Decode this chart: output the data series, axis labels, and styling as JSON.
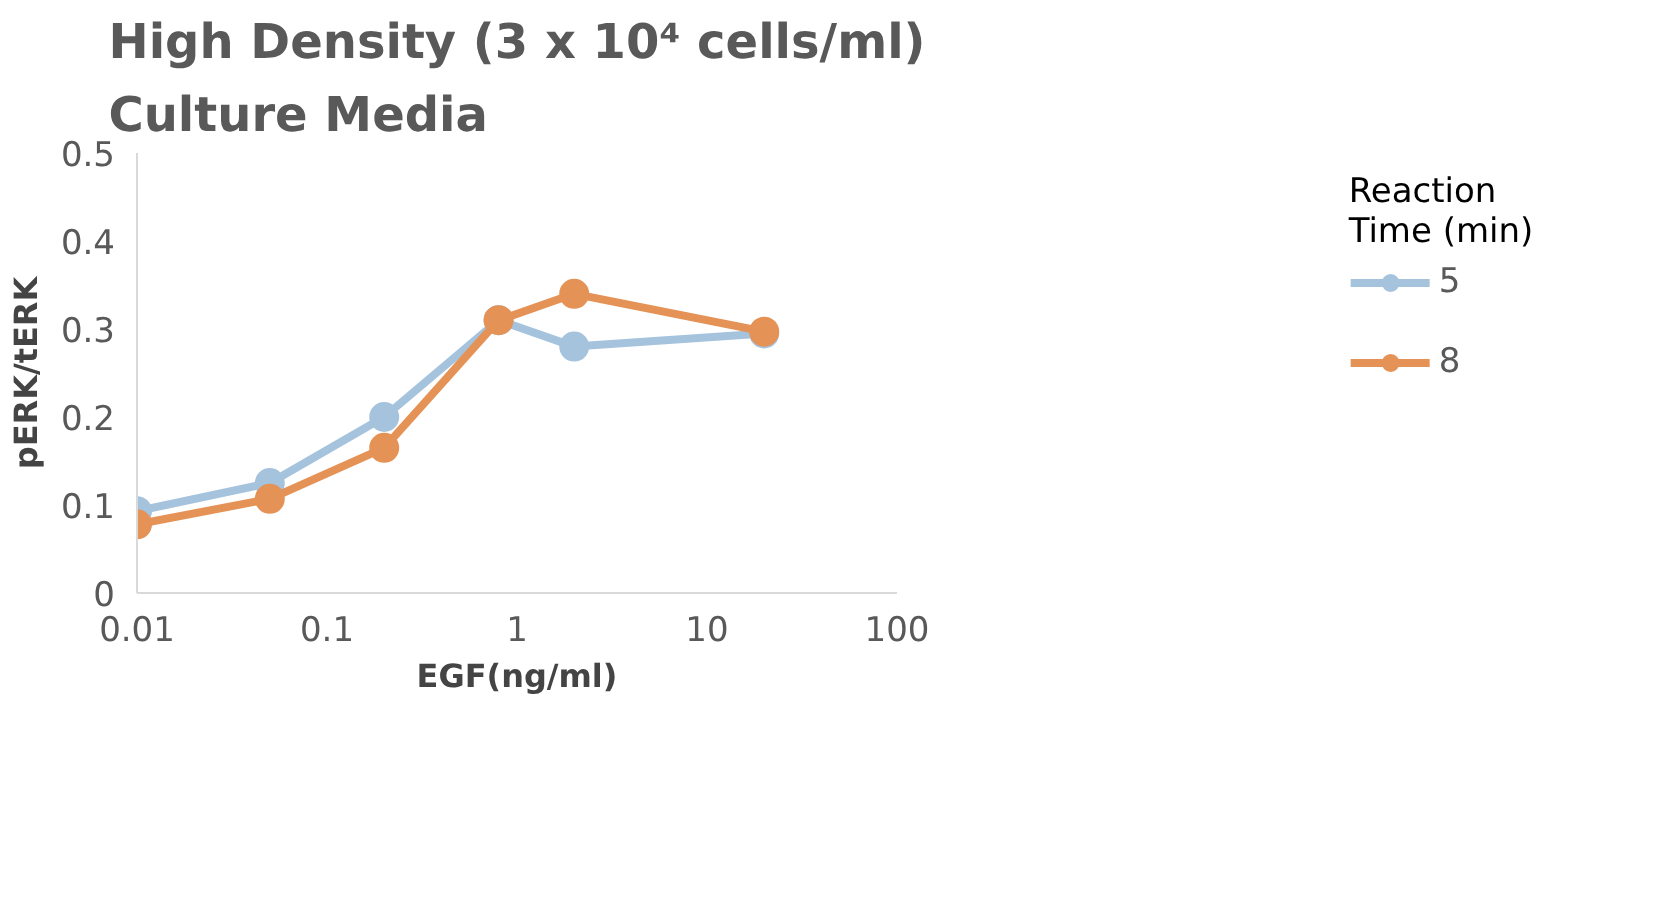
{
  "chart_data": {
    "type": "line",
    "title": "High Density (3 x 10⁴ cells/ml)\nCulture Media",
    "xlabel": "EGF(ng/ml)",
    "ylabel": "pERK/tERK",
    "legend_title": "Reaction\nTime (min)",
    "x": [
      0.01,
      0.05,
      0.2,
      0.8,
      2,
      20
    ],
    "series": [
      {
        "name": "5",
        "color": "#a5c3dc",
        "values": [
          0.093,
          0.125,
          0.2,
          0.31,
          0.28,
          0.295
        ]
      },
      {
        "name": "8",
        "color": "#e59256",
        "values": [
          0.078,
          0.107,
          0.165,
          0.31,
          0.34,
          0.297
        ]
      }
    ],
    "log": "x",
    "xlim": [
      0.01,
      100
    ],
    "xticks": [
      0.01,
      0.1,
      1,
      10,
      100
    ],
    "ylim": [
      0,
      0.5
    ],
    "yticks": [
      0,
      0.1,
      0.2,
      0.3,
      0.4,
      0.5
    ],
    "grid": false,
    "legend": "right",
    "marker": "circle",
    "line_style": "solid"
  }
}
